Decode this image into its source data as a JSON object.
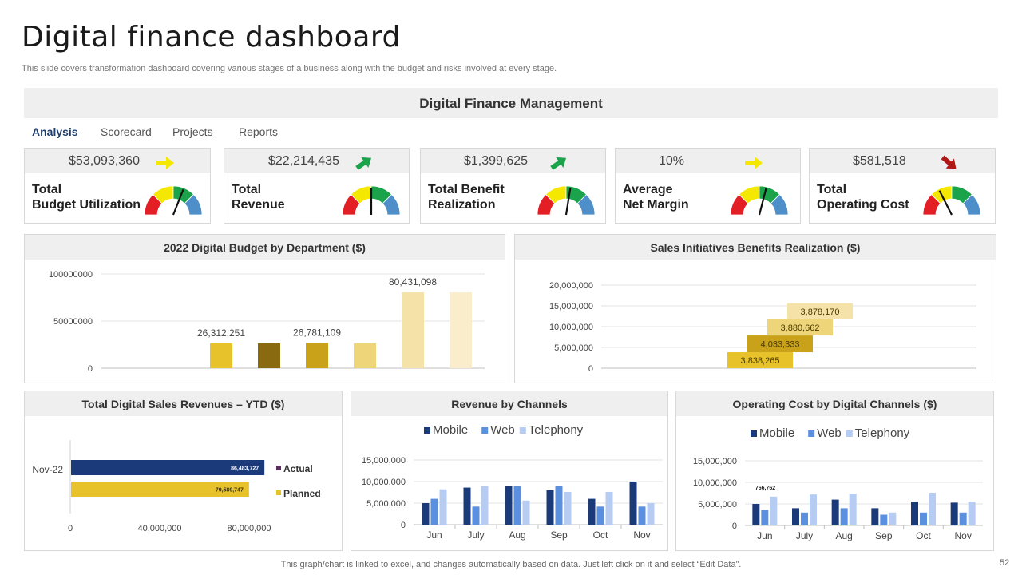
{
  "title": "Digital finance dashboard",
  "subtitle": "This slide covers transformation dashboard covering various stages of a business along with the budget and risks involved at every  stage.",
  "header": "Digital Finance Management",
  "tabs": [
    {
      "label": "Analysis",
      "active": true
    },
    {
      "label": "Scorecard",
      "active": false
    },
    {
      "label": "Projects",
      "active": false
    },
    {
      "label": "Reports",
      "active": false
    }
  ],
  "kpis": [
    {
      "value": "$53,093,360",
      "label1": "Total",
      "label2": "Budget Utilization",
      "arrow": "right-arrow-icon",
      "arrow_color": "#f5e800",
      "needle": 0.62
    },
    {
      "value": "$22,214,435",
      "label1": "Total",
      "label2": "Revenue",
      "arrow": "up-right-arrow-icon",
      "arrow_color": "#1aa34a",
      "needle": 0.5
    },
    {
      "value": "$1,399,625",
      "label1": "Total Benefit",
      "label2": "Realization",
      "arrow": "up-right-arrow-icon",
      "arrow_color": "#1aa34a",
      "needle": 0.55
    },
    {
      "value": "10%",
      "label1": "Average",
      "label2": "Net Margin",
      "arrow": "right-arrow-icon",
      "arrow_color": "#f5e800",
      "needle": 0.58
    },
    {
      "value": "$581,518",
      "label1": "Total",
      "label2": "Operating Cost",
      "arrow": "down-right-arrow-icon",
      "arrow_color": "#b01818",
      "needle": 0.35
    }
  ],
  "colors": {
    "gauge": [
      "#e31e24",
      "#f5e800",
      "#1aa34a",
      "#4f8fc9"
    ],
    "navy": "#1b3a7a",
    "web": "#5b8fe0",
    "tele": "#b6ccf2"
  },
  "footer": "This graph/chart is linked to excel,  and changes automatically based on data. Just left click on it and select “Edit Data”.",
  "page_number": "52",
  "chart_data": [
    {
      "id": "budget",
      "type": "bar",
      "title": "2022 Digital Budget by Department ($)",
      "ylim": [
        0,
        100000000
      ],
      "yticks": [
        0,
        50000000,
        100000000
      ],
      "ytick_labels": [
        "0",
        "50000000",
        "100000000"
      ],
      "categories": [
        "",
        "",
        "",
        "",
        "",
        "",
        "",
        ""
      ],
      "values": [
        0,
        0,
        26312251,
        26312251,
        26781109,
        26312251,
        80431098,
        80431098
      ],
      "colors": [
        "#e8c22a",
        "#e8c22a",
        "#e8c22a",
        "#8a6a10",
        "#c9a21a",
        "#efd57a",
        "#f5e2a8",
        "#f9edcc"
      ],
      "data_labels": [
        "",
        "",
        "26,312,251",
        "",
        "26,781,109",
        "",
        "80,431,098",
        ""
      ]
    },
    {
      "id": "sales",
      "type": "bar",
      "title": "Sales Initiatives Benefits Realization ($)",
      "ylim": [
        0,
        20000000
      ],
      "yticks": [
        0,
        5000000,
        10000000,
        15000000,
        20000000
      ],
      "ytick_labels": [
        "0",
        "5,000,000",
        "10,000,000",
        "15,000,000",
        "20,000,000"
      ],
      "values": [
        3838265,
        4033333,
        3880662,
        3878170
      ],
      "labels": [
        "3,838,265",
        "4,033,333",
        "3,880,662",
        "3,878,170"
      ],
      "colors": [
        "#e8c22a",
        "#c9a21a",
        "#efd57a",
        "#f5e2a8"
      ]
    },
    {
      "id": "ytd",
      "type": "bar",
      "title": "Total Digital Sales Revenues – YTD ($)",
      "categories": [
        "Nov-22"
      ],
      "xlim": [
        0,
        100000000
      ],
      "xticks": [
        0,
        40000000,
        80000000
      ],
      "xtick_labels": [
        "0",
        "40,000,000",
        "80,000,000"
      ],
      "series": [
        {
          "name": "Actual",
          "value": 86483727,
          "label": "86,483,727",
          "color": "#1b3a7a"
        },
        {
          "name": "Planned",
          "value": 79589747,
          "label": "79,589,747",
          "color": "#e8c22a"
        }
      ]
    },
    {
      "id": "channels",
      "type": "bar",
      "title": "Revenue by Channels",
      "categories": [
        "Jun",
        "July",
        "Aug",
        "Sep",
        "Oct",
        "Nov"
      ],
      "ylim": [
        0,
        15000000
      ],
      "yticks": [
        0,
        5000000,
        10000000,
        15000000
      ],
      "ytick_labels": [
        "0",
        "5,000,000",
        "10,000,000",
        "15,000,000"
      ],
      "series": [
        {
          "name": "Mobile",
          "values": [
            5000000,
            8600000,
            9000000,
            8000000,
            6000000,
            10000000
          ]
        },
        {
          "name": "Web",
          "values": [
            6000000,
            4200000,
            9000000,
            9000000,
            4200000,
            4200000
          ]
        },
        {
          "name": "Telephony",
          "values": [
            8200000,
            9000000,
            5600000,
            7600000,
            7600000,
            5000000
          ]
        }
      ]
    },
    {
      "id": "opcost",
      "type": "bar",
      "title": "Operating Cost by Digital Channels ($)",
      "categories": [
        "Jun",
        "July",
        "Aug",
        "Sep",
        "Oct",
        "Nov"
      ],
      "ylim": [
        0,
        15000000
      ],
      "yticks": [
        0,
        5000000,
        10000000,
        15000000
      ],
      "ytick_labels": [
        "0",
        "5,000,000",
        "10,000,000",
        "15,000,000"
      ],
      "annotation": "766,762",
      "series": [
        {
          "name": "Mobile",
          "values": [
            5000000,
            4000000,
            6000000,
            4000000,
            5500000,
            5300000
          ]
        },
        {
          "name": "Web",
          "values": [
            3600000,
            3000000,
            4000000,
            2500000,
            3000000,
            3000000
          ]
        },
        {
          "name": "Telephony",
          "values": [
            6700000,
            7200000,
            7400000,
            3000000,
            7600000,
            5500000
          ]
        }
      ]
    }
  ]
}
